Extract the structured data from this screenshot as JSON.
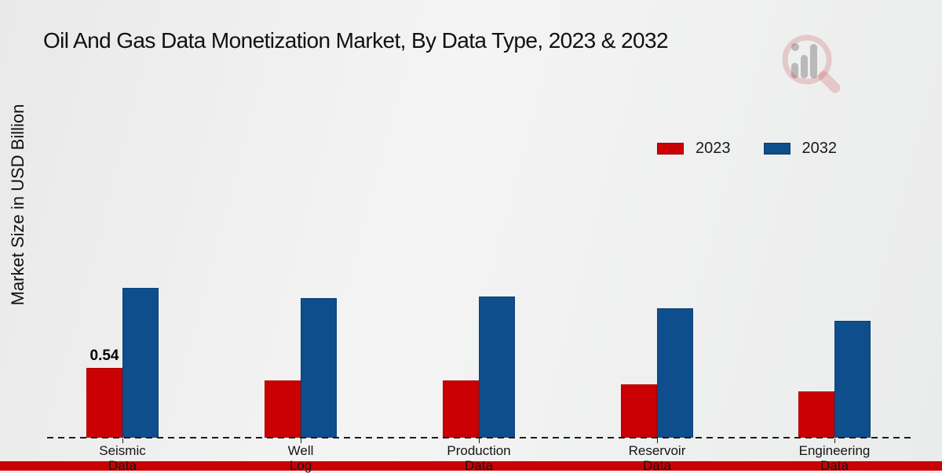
{
  "header": {
    "title": "Oil And Gas Data Monetization Market, By Data Type, 2023 & 2032"
  },
  "chart_data": {
    "type": "bar",
    "title": "Oil And Gas Data Monetization Market, By Data Type, 2023 & 2032",
    "xlabel": "",
    "ylabel": "Market Size in USD Billion",
    "categories": [
      "Seismic Data",
      "Well Log",
      "Production Data",
      "Reservoir Data",
      "Engineering Data"
    ],
    "series": [
      {
        "name": "2023",
        "color": "#CB0002",
        "values": [
          0.54,
          0.44,
          0.44,
          0.41,
          0.36
        ],
        "data_labels": [
          "0.54",
          null,
          null,
          null,
          null
        ]
      },
      {
        "name": "2032",
        "color": "#0E4E8C",
        "values": [
          1.16,
          1.08,
          1.09,
          1.0,
          0.9
        ],
        "data_labels": [
          null,
          null,
          null,
          null,
          null
        ]
      }
    ],
    "legend_position": "upper-right",
    "grid": false,
    "baseline_style": "dashed",
    "ylim": [
      0,
      1.35
    ]
  },
  "colors": {
    "bar_2023": "#CB0002",
    "bar_2032": "#0E4E8C",
    "footer_band": "#CB0002",
    "text": "#1a1a1a"
  },
  "icons": {
    "watermark": "magnifier-bar-chart-logo"
  }
}
